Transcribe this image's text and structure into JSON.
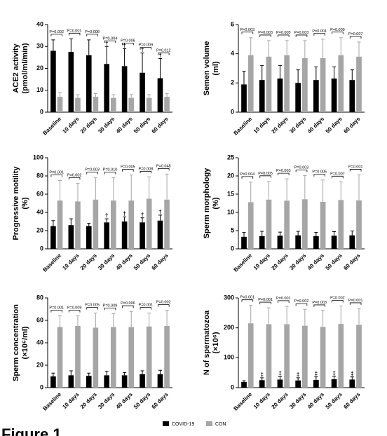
{
  "figure_label": "Figure 1",
  "legend": [
    {
      "name": "COVID-19",
      "color": "#000000"
    },
    {
      "name": "CON",
      "color": "#a6a6a6"
    }
  ],
  "chart_data": [
    {
      "type": "bar",
      "ylabel": [
        "ACE2 activity",
        "(pmol/ml/min)"
      ],
      "categories": [
        "Baseline",
        "10 days",
        "20 days",
        "30 days",
        "40 days",
        "50 days",
        "60 days"
      ],
      "series": [
        {
          "values": [
            28,
            27.5,
            26,
            22,
            21,
            18,
            15.5
          ],
          "errors": [
            5,
            6,
            7,
            8,
            8,
            9,
            9
          ]
        },
        {
          "values": [
            7,
            6.5,
            7,
            6.5,
            6.5,
            6.5,
            7
          ],
          "errors": [
            2,
            1.5,
            1.5,
            1.5,
            1.5,
            1.5,
            1.5
          ]
        }
      ],
      "ylim": [
        0,
        40
      ],
      "yticks": [
        0,
        10,
        20,
        30,
        40
      ],
      "p_values": [
        "P=0.002",
        "P=0.001",
        "P=0.008",
        "P=0.004",
        "P=0.006",
        "P=0.009",
        "P=0.012"
      ],
      "markers": [
        null,
        null,
        null,
        "†",
        "†",
        "†",
        "†"
      ]
    },
    {
      "type": "bar",
      "ylabel": [
        "Semen volume",
        "(ml)"
      ],
      "categories": [
        "Baseline",
        "10 days",
        "20 days",
        "30 days",
        "40 days",
        "50 days",
        "60 days"
      ],
      "series": [
        {
          "values": [
            1.9,
            2.2,
            2.3,
            2.0,
            2.2,
            2.3,
            2.2
          ],
          "errors": [
            0.9,
            1.0,
            0.9,
            0.9,
            0.9,
            0.8,
            0.7
          ]
        },
        {
          "values": [
            3.9,
            3.8,
            3.9,
            3.7,
            3.7,
            3.9,
            3.8
          ],
          "errors": [
            1.2,
            1.1,
            1.0,
            1.2,
            1.3,
            1.2,
            1.0
          ]
        }
      ],
      "ylim": [
        0,
        6
      ],
      "yticks": [
        0,
        2,
        4,
        6
      ],
      "p_values": [
        "P=0.003",
        "P=0.003",
        "P=0.005",
        "P=0.003",
        "P=0.001",
        "P=0.009",
        "P=0.007"
      ],
      "markers": [
        null,
        null,
        null,
        null,
        null,
        null,
        null
      ]
    },
    {
      "type": "bar",
      "ylabel": [
        "Progressive motility",
        "(%)"
      ],
      "categories": [
        "Baseline",
        "10 days",
        "20 days",
        "30 days",
        "40 days",
        "50 days",
        "60 days"
      ],
      "series": [
        {
          "values": [
            25,
            26,
            25,
            29,
            30,
            29,
            31
          ],
          "errors": [
            6,
            7,
            3,
            4,
            5,
            5,
            6
          ]
        },
        {
          "values": [
            53,
            52,
            54,
            53,
            53,
            55,
            54
          ],
          "errors": [
            22,
            20,
            24,
            25,
            28,
            24,
            28
          ]
        }
      ],
      "ylim": [
        0,
        100
      ],
      "yticks": [
        0,
        20,
        40,
        60,
        80,
        100
      ],
      "p_values": [
        "P=0.001",
        "P=0.002",
        "P=0.003",
        "P=0.010",
        "P=0.005",
        "P=0.008",
        "P=0.048"
      ],
      "markers": [
        null,
        null,
        null,
        "†",
        "†",
        "†",
        "†"
      ]
    },
    {
      "type": "bar",
      "ylabel": [
        "Sperm morphology",
        "(%)"
      ],
      "categories": [
        "Baseline",
        "10 days",
        "20 days",
        "30 days",
        "40 days",
        "50 days",
        "60 days"
      ],
      "series": [
        {
          "values": [
            3.3,
            3.5,
            3.6,
            3.7,
            3.5,
            3.6,
            3.7
          ],
          "errors": [
            1.2,
            1.3,
            1.0,
            1.1,
            1.0,
            1.1,
            1.2
          ]
        },
        {
          "values": [
            12.8,
            13.5,
            13.2,
            13.6,
            12.9,
            13.4,
            13.3
          ],
          "errors": [
            5.5,
            5,
            6,
            6.5,
            6,
            5,
            7
          ]
        }
      ],
      "ylim": [
        0,
        25
      ],
      "yticks": [
        0,
        5,
        10,
        15,
        20,
        25
      ],
      "p_values": [
        "P=0.004",
        "P=0.005",
        "P=0.003",
        "P=0.003",
        "P=0.005",
        "P=0.007",
        "P=0.001"
      ],
      "markers": [
        null,
        null,
        null,
        null,
        null,
        null,
        null
      ]
    },
    {
      "type": "bar",
      "ylabel": [
        "Sperm concentration",
        "(×10⁶/ml)"
      ],
      "categories": [
        "Baseline",
        "10 days",
        "20 days",
        "30 days",
        "40 days",
        "50 days",
        "60 days"
      ],
      "series": [
        {
          "values": [
            10,
            11,
            10.5,
            11,
            11,
            12,
            12
          ],
          "errors": [
            3,
            4,
            2.5,
            3.5,
            2.5,
            3,
            3.5
          ]
        },
        {
          "values": [
            54,
            55,
            53.5,
            54,
            54,
            54.5,
            55
          ],
          "errors": [
            10,
            9,
            13,
            12,
            14,
            12,
            14
          ]
        }
      ],
      "ylim": [
        0,
        80
      ],
      "yticks": [
        0,
        20,
        40,
        60,
        80
      ],
      "p_values": [
        "P=0.001",
        "P=0.009",
        "P=0.005",
        "P=0.009",
        "P=0.006",
        "P=0.001",
        "P=0.002"
      ],
      "markers": [
        null,
        null,
        null,
        null,
        null,
        null,
        null
      ]
    },
    {
      "type": "bar",
      "ylabel": [
        "N of spermatozoa",
        "(×10⁶)"
      ],
      "categories": [
        "Baseline",
        "10 days",
        "20 days",
        "30 days",
        "40 days",
        "50 days",
        "60 days"
      ],
      "series": [
        {
          "values": [
            19,
            25,
            27,
            24,
            26,
            28,
            27
          ],
          "errors": [
            4,
            8,
            10,
            9,
            10,
            10,
            9
          ]
        },
        {
          "values": [
            215,
            212,
            212,
            207,
            203,
            213,
            210
          ],
          "errors": [
            60,
            55,
            60,
            55,
            55,
            60,
            55
          ]
        }
      ],
      "ylim": [
        0,
        300
      ],
      "yticks": [
        0,
        100,
        200,
        300
      ],
      "p_values": [
        "P=0.001",
        "P=0.001",
        "P=0.001",
        "P=0.002",
        "P=0.003",
        "P=0.002",
        "P=0.001"
      ],
      "markers": [
        null,
        "‡",
        "‡",
        "‡",
        "‡",
        "‡",
        "‡"
      ]
    }
  ]
}
